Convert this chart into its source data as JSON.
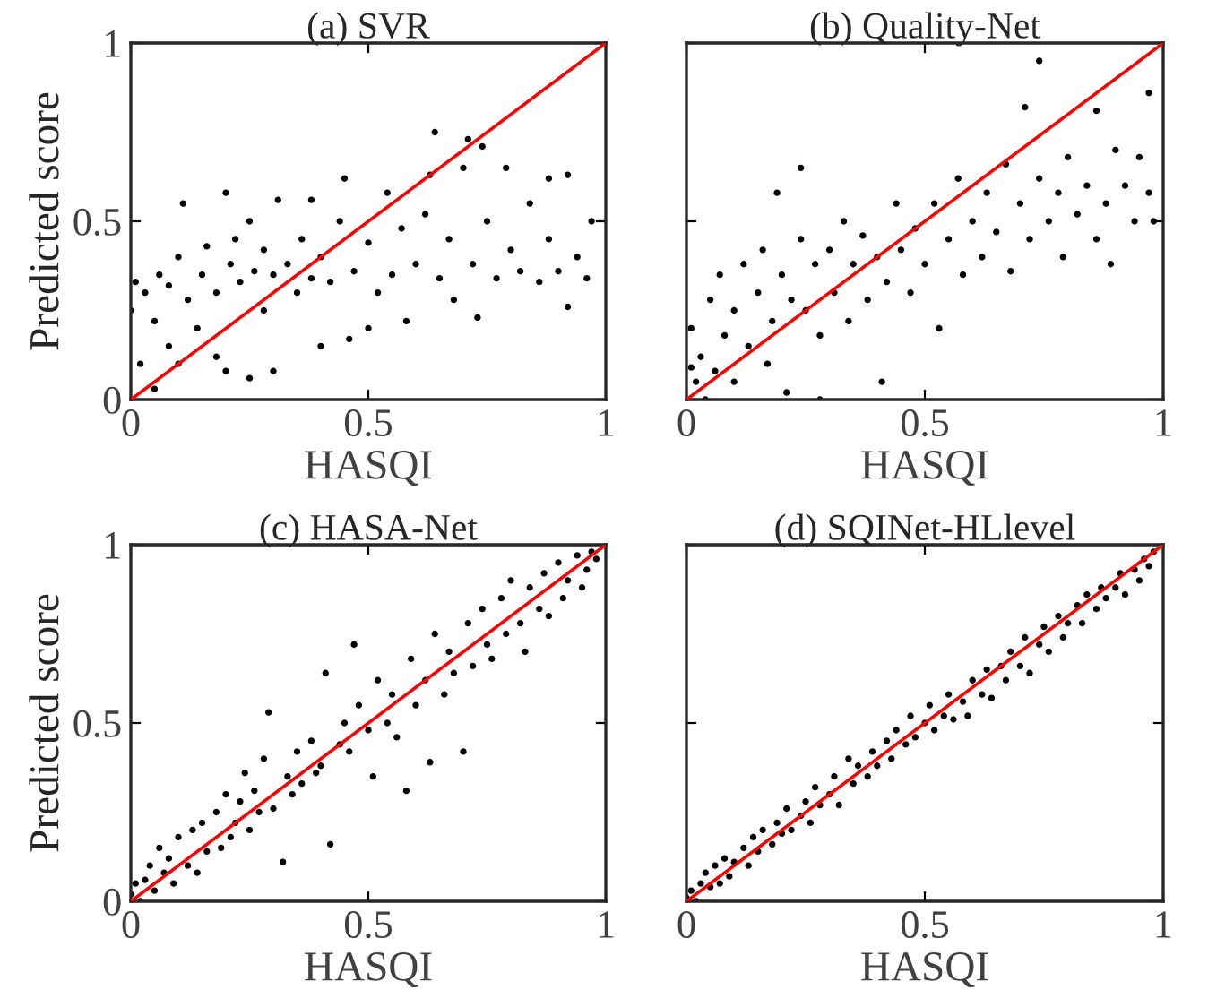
{
  "chart_data": [
    {
      "type": "scatter",
      "title": "(a) SVR",
      "xlabel": "HASQI",
      "ylabel": "Predicted score",
      "xlim": [
        0,
        1
      ],
      "ylim": [
        0,
        1
      ],
      "xticks": [
        0,
        0.5,
        1
      ],
      "yticks": [
        0,
        0.5,
        1
      ],
      "grid": false,
      "series": [
        {
          "marker": "circle",
          "color": "#000000",
          "x": [
            0.0,
            0.01,
            0.02,
            0.03,
            0.05,
            0.05,
            0.06,
            0.08,
            0.08,
            0.1,
            0.1,
            0.11,
            0.12,
            0.14,
            0.15,
            0.16,
            0.18,
            0.18,
            0.2,
            0.2,
            0.21,
            0.22,
            0.23,
            0.25,
            0.25,
            0.26,
            0.28,
            0.28,
            0.3,
            0.3,
            0.31,
            0.33,
            0.35,
            0.36,
            0.38,
            0.38,
            0.4,
            0.4,
            0.42,
            0.44,
            0.45,
            0.46,
            0.47,
            0.5,
            0.5,
            0.52,
            0.54,
            0.55,
            0.57,
            0.58,
            0.6,
            0.62,
            0.63,
            0.64,
            0.65,
            0.67,
            0.68,
            0.7,
            0.71,
            0.72,
            0.73,
            0.74,
            0.75,
            0.77,
            0.79,
            0.8,
            0.82,
            0.84,
            0.86,
            0.88,
            0.88,
            0.9,
            0.92,
            0.92,
            0.94,
            0.96,
            0.97
          ],
          "values": [
            0.25,
            0.33,
            0.1,
            0.3,
            0.03,
            0.22,
            0.35,
            0.15,
            0.32,
            0.1,
            0.4,
            0.55,
            0.28,
            0.2,
            0.35,
            0.43,
            0.12,
            0.3,
            0.58,
            0.08,
            0.38,
            0.45,
            0.33,
            0.06,
            0.5,
            0.36,
            0.25,
            0.42,
            0.08,
            0.35,
            0.56,
            0.38,
            0.3,
            0.45,
            0.34,
            0.56,
            0.15,
            0.4,
            0.33,
            0.5,
            0.62,
            0.17,
            0.36,
            0.2,
            0.44,
            0.3,
            0.58,
            0.35,
            0.48,
            0.22,
            0.38,
            0.52,
            0.63,
            0.75,
            0.34,
            0.45,
            0.28,
            0.65,
            0.73,
            0.38,
            0.23,
            0.71,
            0.5,
            0.34,
            0.65,
            0.42,
            0.36,
            0.55,
            0.33,
            0.62,
            0.45,
            0.36,
            0.26,
            0.63,
            0.4,
            0.34,
            0.5
          ]
        },
        {
          "type": "line",
          "color": "#ff0000",
          "x": [
            0,
            1
          ],
          "values": [
            0,
            1
          ]
        }
      ]
    },
    {
      "type": "scatter",
      "title": "(b) Quality-Net",
      "xlabel": "HASQI",
      "xlim": [
        0,
        1
      ],
      "ylim": [
        0,
        1
      ],
      "xticks": [
        0,
        0.5,
        1
      ],
      "yticks": [
        0,
        0.5,
        1
      ],
      "tick_labels": "x",
      "grid": false,
      "series": [
        {
          "marker": "circle",
          "color": "#000000",
          "x": [
            0.01,
            0.01,
            0.02,
            0.03,
            0.04,
            0.05,
            0.06,
            0.07,
            0.08,
            0.1,
            0.1,
            0.12,
            0.13,
            0.15,
            0.16,
            0.17,
            0.18,
            0.19,
            0.2,
            0.21,
            0.22,
            0.24,
            0.24,
            0.25,
            0.27,
            0.28,
            0.28,
            0.3,
            0.31,
            0.33,
            0.34,
            0.35,
            0.37,
            0.38,
            0.4,
            0.41,
            0.42,
            0.44,
            0.45,
            0.47,
            0.48,
            0.5,
            0.52,
            0.53,
            0.55,
            0.57,
            0.58,
            0.6,
            0.62,
            0.63,
            0.65,
            0.67,
            0.68,
            0.7,
            0.71,
            0.72,
            0.74,
            0.74,
            0.76,
            0.78,
            0.79,
            0.8,
            0.82,
            0.84,
            0.86,
            0.86,
            0.88,
            0.89,
            0.9,
            0.92,
            0.94,
            0.95,
            0.97,
            0.97,
            0.98
          ],
          "values": [
            0.09,
            0.2,
            0.05,
            0.12,
            0.0,
            0.28,
            0.08,
            0.35,
            0.18,
            0.25,
            0.05,
            0.38,
            0.15,
            0.3,
            0.42,
            0.1,
            0.22,
            0.58,
            0.35,
            0.02,
            0.28,
            0.65,
            0.45,
            0.25,
            0.38,
            0.0,
            0.18,
            0.42,
            0.3,
            0.5,
            0.22,
            0.38,
            0.46,
            0.28,
            0.4,
            0.05,
            0.33,
            0.55,
            0.42,
            0.3,
            0.48,
            0.38,
            0.55,
            0.2,
            0.45,
            0.62,
            0.35,
            0.5,
            0.4,
            0.58,
            0.47,
            0.66,
            0.36,
            0.55,
            0.82,
            0.45,
            0.95,
            0.62,
            0.5,
            0.58,
            0.4,
            0.68,
            0.52,
            0.6,
            0.81,
            0.45,
            0.55,
            0.38,
            0.7,
            0.6,
            0.5,
            0.68,
            0.86,
            0.58,
            0.5
          ]
        },
        {
          "type": "line",
          "color": "#ff0000",
          "x": [
            0,
            1
          ],
          "values": [
            0,
            1
          ]
        }
      ]
    },
    {
      "type": "scatter",
      "title": "(c) HASA-Net",
      "xlabel": "HASQI",
      "ylabel": "Predicted score",
      "xlim": [
        0,
        1
      ],
      "ylim": [
        0,
        1
      ],
      "xticks": [
        0,
        0.5,
        1
      ],
      "yticks": [
        0,
        0.5,
        1
      ],
      "grid": false,
      "series": [
        {
          "marker": "circle",
          "color": "#000000",
          "x": [
            0.0,
            0.01,
            0.02,
            0.03,
            0.04,
            0.05,
            0.06,
            0.07,
            0.08,
            0.09,
            0.1,
            0.12,
            0.13,
            0.14,
            0.15,
            0.16,
            0.18,
            0.19,
            0.2,
            0.21,
            0.22,
            0.23,
            0.24,
            0.25,
            0.26,
            0.27,
            0.28,
            0.29,
            0.3,
            0.32,
            0.33,
            0.34,
            0.35,
            0.36,
            0.38,
            0.39,
            0.4,
            0.41,
            0.42,
            0.44,
            0.45,
            0.46,
            0.47,
            0.48,
            0.5,
            0.51,
            0.52,
            0.54,
            0.55,
            0.56,
            0.58,
            0.59,
            0.6,
            0.62,
            0.63,
            0.64,
            0.66,
            0.67,
            0.68,
            0.7,
            0.71,
            0.72,
            0.74,
            0.75,
            0.76,
            0.78,
            0.79,
            0.8,
            0.82,
            0.83,
            0.84,
            0.86,
            0.87,
            0.88,
            0.9,
            0.91,
            0.92,
            0.94,
            0.95,
            0.96,
            0.97,
            0.98
          ],
          "values": [
            0.02,
            0.05,
            0.0,
            0.06,
            0.1,
            0.03,
            0.15,
            0.08,
            0.12,
            0.05,
            0.18,
            0.1,
            0.2,
            0.08,
            0.22,
            0.14,
            0.25,
            0.15,
            0.3,
            0.18,
            0.22,
            0.28,
            0.36,
            0.2,
            0.31,
            0.25,
            0.4,
            0.53,
            0.26,
            0.11,
            0.35,
            0.3,
            0.42,
            0.33,
            0.45,
            0.36,
            0.38,
            0.64,
            0.16,
            0.44,
            0.5,
            0.42,
            0.72,
            0.55,
            0.48,
            0.35,
            0.62,
            0.5,
            0.58,
            0.46,
            0.31,
            0.68,
            0.55,
            0.62,
            0.39,
            0.75,
            0.58,
            0.7,
            0.64,
            0.42,
            0.78,
            0.66,
            0.82,
            0.72,
            0.68,
            0.85,
            0.75,
            0.9,
            0.78,
            0.7,
            0.88,
            0.82,
            0.92,
            0.8,
            0.95,
            0.85,
            0.9,
            0.97,
            0.88,
            0.93,
            0.98,
            0.96
          ]
        },
        {
          "type": "line",
          "color": "#ff0000",
          "x": [
            0,
            1
          ],
          "values": [
            0,
            1
          ]
        }
      ]
    },
    {
      "type": "scatter",
      "title": "(d) SQINet-HLlevel",
      "xlabel": "HASQI",
      "xlim": [
        0,
        1
      ],
      "ylim": [
        0,
        1
      ],
      "xticks": [
        0,
        0.5,
        1
      ],
      "yticks": [
        0,
        0.5,
        1
      ],
      "tick_labels": "x",
      "grid": false,
      "series": [
        {
          "marker": "circle",
          "color": "#000000",
          "x": [
            0.0,
            0.01,
            0.02,
            0.03,
            0.04,
            0.05,
            0.06,
            0.07,
            0.08,
            0.09,
            0.1,
            0.12,
            0.13,
            0.14,
            0.15,
            0.16,
            0.18,
            0.19,
            0.2,
            0.21,
            0.22,
            0.24,
            0.25,
            0.26,
            0.27,
            0.28,
            0.3,
            0.31,
            0.32,
            0.34,
            0.35,
            0.36,
            0.38,
            0.39,
            0.4,
            0.42,
            0.43,
            0.44,
            0.46,
            0.47,
            0.48,
            0.5,
            0.51,
            0.52,
            0.54,
            0.55,
            0.56,
            0.58,
            0.59,
            0.6,
            0.62,
            0.63,
            0.64,
            0.66,
            0.67,
            0.68,
            0.7,
            0.71,
            0.72,
            0.74,
            0.75,
            0.76,
            0.78,
            0.79,
            0.8,
            0.82,
            0.83,
            0.84,
            0.86,
            0.87,
            0.88,
            0.9,
            0.91,
            0.92,
            0.94,
            0.95,
            0.96,
            0.97,
            0.98
          ],
          "values": [
            0.01,
            0.03,
            0.0,
            0.05,
            0.08,
            0.04,
            0.1,
            0.05,
            0.12,
            0.07,
            0.11,
            0.15,
            0.1,
            0.18,
            0.14,
            0.2,
            0.16,
            0.22,
            0.19,
            0.26,
            0.2,
            0.24,
            0.28,
            0.22,
            0.32,
            0.27,
            0.3,
            0.35,
            0.27,
            0.4,
            0.33,
            0.38,
            0.35,
            0.42,
            0.38,
            0.45,
            0.4,
            0.48,
            0.44,
            0.52,
            0.46,
            0.5,
            0.55,
            0.48,
            0.52,
            0.58,
            0.51,
            0.56,
            0.52,
            0.62,
            0.58,
            0.65,
            0.57,
            0.66,
            0.62,
            0.7,
            0.66,
            0.74,
            0.64,
            0.72,
            0.77,
            0.7,
            0.8,
            0.74,
            0.78,
            0.83,
            0.78,
            0.86,
            0.82,
            0.88,
            0.85,
            0.88,
            0.92,
            0.86,
            0.93,
            0.9,
            0.96,
            0.94,
            0.98
          ]
        },
        {
          "type": "line",
          "color": "#ff0000",
          "x": [
            0,
            1
          ],
          "values": [
            0,
            1
          ]
        }
      ]
    }
  ]
}
